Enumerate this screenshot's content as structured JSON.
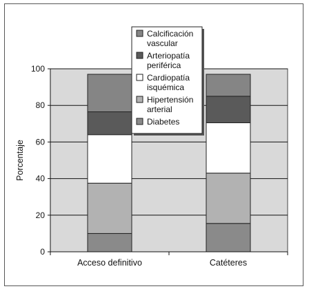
{
  "chart_data": {
    "type": "bar",
    "stacked": true,
    "categories": [
      "Acceso definitivo",
      "Catéteres"
    ],
    "ylabel": "Porcentaje",
    "xlabel": "",
    "ylim": [
      0,
      100
    ],
    "yticks": [
      0,
      20,
      40,
      60,
      80,
      100
    ],
    "grid": true,
    "legend_position": "top-center",
    "series": [
      {
        "name": "Diabetes",
        "legend_lines": [
          "Diabetes"
        ],
        "values": [
          10,
          15.5
        ],
        "color": "#8a8a8a"
      },
      {
        "name": "Hipertensión arterial",
        "legend_lines": [
          "Hipertensión",
          "arterial"
        ],
        "values": [
          27.5,
          27.5
        ],
        "color": "#b2b2b2"
      },
      {
        "name": "Cardiopatía isquémica",
        "legend_lines": [
          "Cardiopatía",
          "isquémica"
        ],
        "values": [
          26.5,
          27.5
        ],
        "color": "#ffffff"
      },
      {
        "name": "Arteriopatía periférica",
        "legend_lines": [
          "Arteriopatía",
          "periférica"
        ],
        "values": [
          12.5,
          14.5
        ],
        "color": "#5a5a5a"
      },
      {
        "name": "Calcificación vascular",
        "legend_lines": [
          "Calcificación",
          "vascular"
        ],
        "values": [
          20.5,
          12
        ],
        "color": "#858585"
      }
    ],
    "plot_background": "#d9d9d9"
  }
}
